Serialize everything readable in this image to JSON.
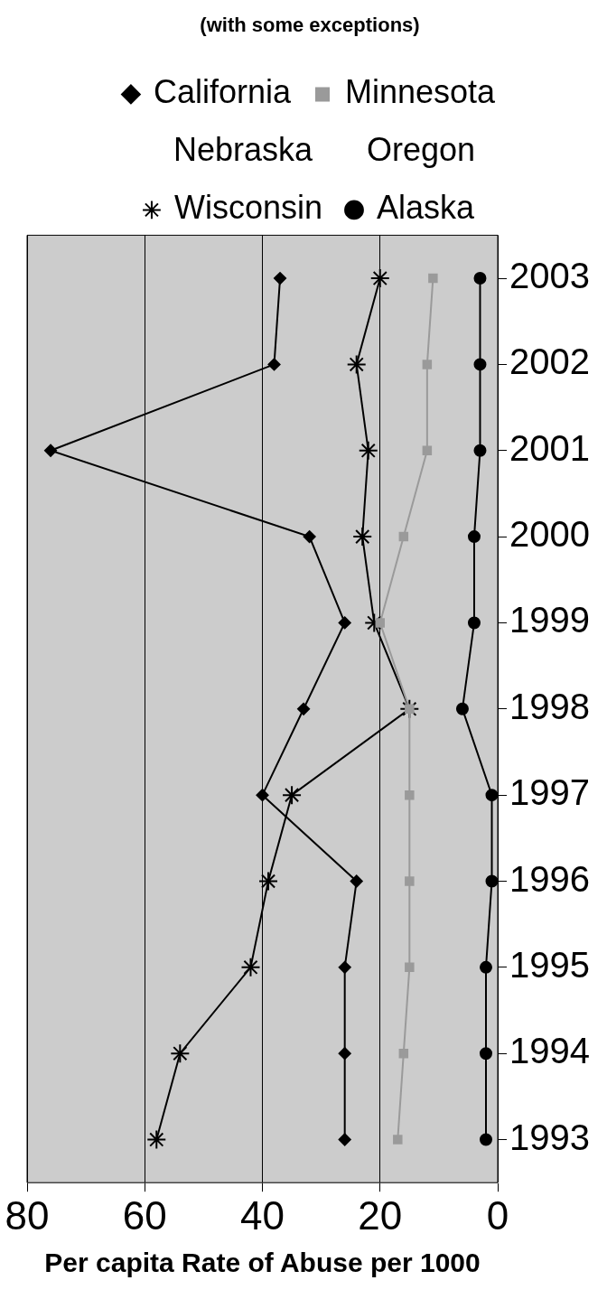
{
  "chart_data": {
    "type": "line",
    "orientation": "horizontal",
    "subtitle": "(with some exceptions)",
    "xlabel": "Per capita Rate of Abuse per 1000",
    "categories": [
      "2003",
      "2002",
      "2001",
      "2000",
      "1999",
      "1998",
      "1997",
      "1996",
      "1995",
      "1994",
      "1993"
    ],
    "series": [
      {
        "name": "California",
        "color": "#000000",
        "marker": "diamond",
        "values": [
          37,
          38,
          76,
          32,
          26,
          33,
          40,
          24,
          26,
          26,
          26
        ]
      },
      {
        "name": "Minnesota",
        "color": "#9a9a9a",
        "marker": "square",
        "values": [
          11,
          12,
          12,
          16,
          20,
          15,
          15,
          15,
          15,
          16,
          17
        ]
      },
      {
        "name": "Nebraska",
        "marker": "none",
        "values": [
          null,
          null,
          null,
          null,
          null,
          null,
          null,
          null,
          null,
          null,
          null
        ]
      },
      {
        "name": "Oregon",
        "marker": "none",
        "values": [
          null,
          null,
          null,
          null,
          null,
          null,
          null,
          null,
          null,
          null,
          null
        ]
      },
      {
        "name": "Wisconsin",
        "color": "#000000",
        "marker": "cross",
        "values": [
          20,
          24,
          22,
          23,
          21,
          15,
          35,
          39,
          42,
          54,
          58
        ]
      },
      {
        "name": "Alaska",
        "color": "#000000",
        "marker": "circle",
        "values": [
          3,
          3,
          3,
          4,
          4,
          6,
          1,
          1,
          2,
          2,
          2
        ]
      }
    ],
    "xlim": [
      80,
      0
    ],
    "xticks": [
      0,
      20,
      40,
      60,
      80
    ],
    "grid": "x",
    "legend": "top"
  }
}
